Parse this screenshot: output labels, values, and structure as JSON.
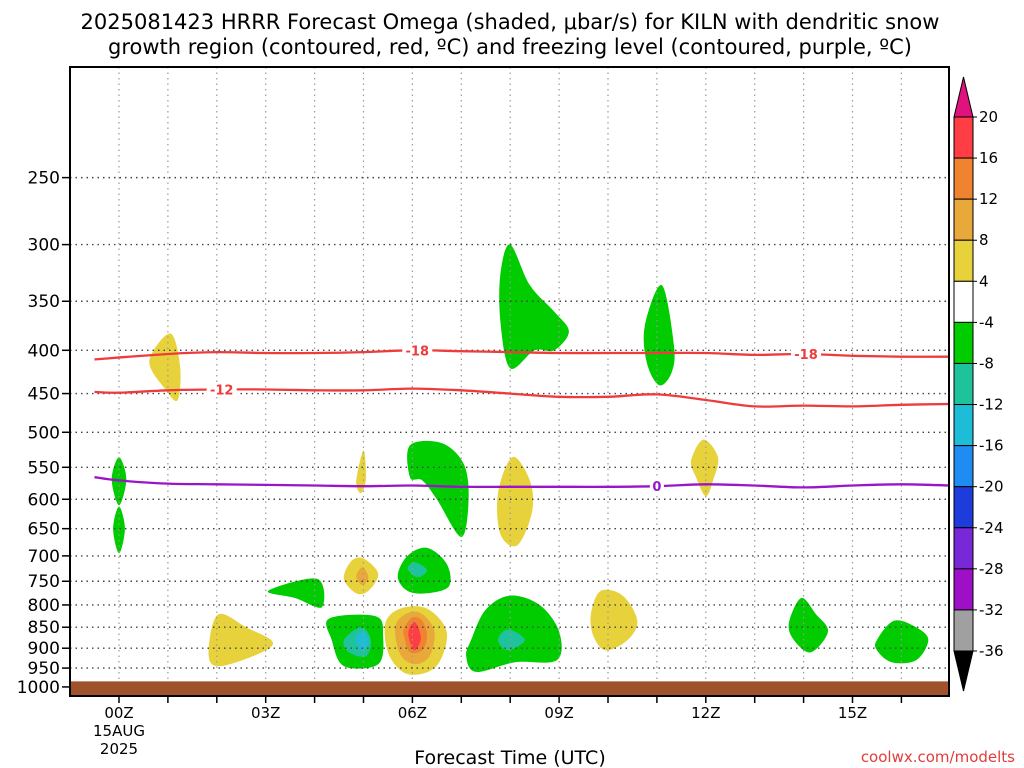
{
  "title": {
    "line1": "2025081423 HRRR Forecast Omega (shaded, μbar/s) for KILN with dendritic snow",
    "line2": "growth region (contoured, red, ºC) and freezing level (contoured, purple, ºC)"
  },
  "xlabel": "Forecast Time (UTC)",
  "credit": "coolwx.com/modelts",
  "chart_data": {
    "type": "heatmap",
    "x": {
      "range": [
        -0.5,
        17.0
      ],
      "ticks": [
        0,
        3,
        6,
        9,
        12,
        15
      ],
      "tick_labels": [
        "00Z",
        "03Z",
        "06Z",
        "09Z",
        "12Z",
        "15Z"
      ],
      "first_tick_extra": [
        "15AUG",
        "2025"
      ],
      "grid_hours": [
        0,
        1,
        2,
        3,
        4,
        5,
        6,
        7,
        8,
        9,
        10,
        11,
        12,
        13,
        14,
        15,
        16
      ]
    },
    "y": {
      "range": [
        1025,
        185
      ],
      "scale": "log-pressure",
      "ticks": [
        250,
        300,
        350,
        400,
        450,
        500,
        550,
        600,
        650,
        700,
        750,
        800,
        850,
        900,
        950,
        1000
      ],
      "grid": true
    },
    "ground": {
      "top_pressure": 985,
      "color": "#a0522d"
    },
    "colorbar": {
      "labels": [
        "20",
        "16",
        "12",
        "8",
        "4",
        "-4",
        "-8",
        "-12",
        "-16",
        "-20",
        "-24",
        "-28",
        "-32",
        "-36"
      ],
      "colors": [
        "#ff3d44",
        "#f08330",
        "#e8a83a",
        "#e8d23c",
        "#ffffff",
        "#00cc00",
        "#1ec39b",
        "#1ebdd7",
        "#1e8cf0",
        "#1e3cdc",
        "#7828d7",
        "#9e0fc8",
        "#a0a0a0"
      ],
      "top_arrow_color": "#e0127e",
      "bottom_arrow_color": "#000000"
    },
    "omega_regions": [
      {
        "label": "4",
        "color": "#e8d23c",
        "points": [
          [
            0.62,
            412
          ],
          [
            1.05,
            382
          ],
          [
            1.25,
            418
          ],
          [
            1.2,
            458
          ],
          [
            0.95,
            445
          ]
        ]
      },
      {
        "label": "-4",
        "color": "#00cc00",
        "points": [
          [
            0.0,
            535
          ],
          [
            0.15,
            568
          ],
          [
            0.0,
            610
          ],
          [
            -0.15,
            568
          ]
        ]
      },
      {
        "label": "-4",
        "color": "#00cc00",
        "points": [
          [
            0.0,
            612
          ],
          [
            0.12,
            650
          ],
          [
            0.0,
            695
          ],
          [
            -0.12,
            650
          ]
        ]
      },
      {
        "label": "4",
        "color": "#e8d23c",
        "points": [
          [
            1.85,
            880
          ],
          [
            2.05,
            820
          ],
          [
            2.6,
            850
          ],
          [
            3.15,
            890
          ],
          [
            2.4,
            935
          ],
          [
            1.9,
            940
          ]
        ]
      },
      {
        "label": "-4",
        "color": "#00cc00",
        "points": [
          [
            3.05,
            770
          ],
          [
            4.05,
            745
          ],
          [
            4.15,
            805
          ],
          [
            3.6,
            785
          ]
        ]
      },
      {
        "label": "-4",
        "color": "#00cc00",
        "points": [
          [
            4.3,
            830
          ],
          [
            5.25,
            825
          ],
          [
            5.4,
            870
          ],
          [
            5.3,
            940
          ],
          [
            4.6,
            945
          ],
          [
            4.35,
            880
          ]
        ]
      },
      {
        "label": "-8",
        "color": "#1ec39b",
        "points": [
          [
            4.6,
            880
          ],
          [
            4.95,
            850
          ],
          [
            5.15,
            880
          ],
          [
            5.05,
            920
          ],
          [
            4.7,
            910
          ]
        ]
      },
      {
        "label": "-12",
        "color": "#1ebdd7",
        "points": [
          [
            4.85,
            875
          ],
          [
            5.0,
            860
          ],
          [
            5.1,
            885
          ],
          [
            4.95,
            905
          ]
        ]
      },
      {
        "label": "4",
        "color": "#e8d23c",
        "points": [
          [
            4.85,
            572
          ],
          [
            5.0,
            525
          ],
          [
            5.05,
            568
          ],
          [
            4.95,
            590
          ]
        ]
      },
      {
        "label": "4",
        "color": "#e8d23c",
        "points": [
          [
            4.6,
            745
          ],
          [
            4.75,
            710
          ],
          [
            5.0,
            705
          ],
          [
            5.3,
            735
          ],
          [
            5.1,
            770
          ],
          [
            4.85,
            775
          ]
        ]
      },
      {
        "label": "8",
        "color": "#e8a83a",
        "points": [
          [
            4.85,
            740
          ],
          [
            4.98,
            722
          ],
          [
            5.1,
            742
          ],
          [
            4.98,
            758
          ]
        ]
      },
      {
        "label": "4",
        "color": "#e8d23c",
        "points": [
          [
            5.45,
            840
          ],
          [
            5.75,
            808
          ],
          [
            6.3,
            808
          ],
          [
            6.7,
            860
          ],
          [
            6.55,
            935
          ],
          [
            6.2,
            965
          ],
          [
            5.8,
            960
          ],
          [
            5.5,
            910
          ]
        ]
      },
      {
        "label": "8",
        "color": "#e8a83a",
        "points": [
          [
            5.65,
            848
          ],
          [
            5.9,
            818
          ],
          [
            6.2,
            820
          ],
          [
            6.45,
            860
          ],
          [
            6.35,
            920
          ],
          [
            6.05,
            940
          ],
          [
            5.75,
            915
          ]
        ]
      },
      {
        "label": "12",
        "color": "#f08330",
        "points": [
          [
            5.82,
            855
          ],
          [
            6.0,
            828
          ],
          [
            6.2,
            835
          ],
          [
            6.3,
            870
          ],
          [
            6.2,
            905
          ],
          [
            5.95,
            910
          ],
          [
            5.85,
            880
          ]
        ]
      },
      {
        "label": "16",
        "color": "#ff3d44",
        "points": [
          [
            5.92,
            860
          ],
          [
            6.02,
            838
          ],
          [
            6.12,
            850
          ],
          [
            6.17,
            880
          ],
          [
            6.05,
            905
          ],
          [
            5.95,
            885
          ]
        ]
      },
      {
        "label": "-4",
        "color": "#00cc00",
        "points": [
          [
            5.7,
            740
          ],
          [
            5.9,
            700
          ],
          [
            6.3,
            685
          ],
          [
            6.7,
            715
          ],
          [
            6.75,
            760
          ],
          [
            6.3,
            775
          ],
          [
            5.9,
            770
          ]
        ]
      },
      {
        "label": "-8",
        "color": "#1ec39b",
        "points": [
          [
            5.9,
            725
          ],
          [
            6.05,
            712
          ],
          [
            6.3,
            728
          ],
          [
            6.1,
            742
          ]
        ]
      },
      {
        "label": "-4",
        "color": "#00cc00",
        "points": [
          [
            5.95,
            518
          ],
          [
            6.6,
            515
          ],
          [
            7.05,
            545
          ],
          [
            7.15,
            600
          ],
          [
            7.0,
            665
          ],
          [
            6.5,
            600
          ],
          [
            6.2,
            570
          ],
          [
            5.95,
            565
          ]
        ]
      },
      {
        "label": "-4",
        "color": "#00cc00",
        "points": [
          [
            7.8,
            325
          ],
          [
            8.0,
            300
          ],
          [
            8.4,
            335
          ],
          [
            8.9,
            360
          ],
          [
            9.2,
            380
          ],
          [
            8.9,
            400
          ],
          [
            8.5,
            400
          ],
          [
            8.0,
            420
          ],
          [
            7.8,
            370
          ]
        ]
      },
      {
        "label": "4",
        "color": "#e8d23c",
        "points": [
          [
            7.75,
            590
          ],
          [
            8.05,
            535
          ],
          [
            8.4,
            570
          ],
          [
            8.45,
            620
          ],
          [
            8.15,
            680
          ],
          [
            7.8,
            660
          ]
        ]
      },
      {
        "label": "-4",
        "color": "#00cc00",
        "points": [
          [
            7.2,
            880
          ],
          [
            7.5,
            810
          ],
          [
            8.0,
            780
          ],
          [
            8.6,
            800
          ],
          [
            9.0,
            860
          ],
          [
            8.95,
            930
          ],
          [
            8.1,
            935
          ],
          [
            7.3,
            960
          ],
          [
            7.1,
            920
          ]
        ]
      },
      {
        "label": "-8",
        "color": "#1ec39b",
        "points": [
          [
            7.75,
            880
          ],
          [
            7.95,
            855
          ],
          [
            8.3,
            880
          ],
          [
            7.95,
            905
          ]
        ]
      },
      {
        "label": "4",
        "color": "#e8d23c",
        "points": [
          [
            9.65,
            820
          ],
          [
            9.85,
            770
          ],
          [
            10.3,
            780
          ],
          [
            10.6,
            835
          ],
          [
            10.4,
            880
          ],
          [
            9.95,
            905
          ],
          [
            9.7,
            870
          ]
        ]
      },
      {
        "label": "-4",
        "color": "#00cc00",
        "points": [
          [
            10.75,
            375
          ],
          [
            11.1,
            335
          ],
          [
            11.35,
            395
          ],
          [
            11.3,
            425
          ],
          [
            11.05,
            440
          ],
          [
            10.8,
            415
          ]
        ]
      },
      {
        "label": "4",
        "color": "#e8d23c",
        "points": [
          [
            11.7,
            540
          ],
          [
            11.95,
            510
          ],
          [
            12.25,
            535
          ],
          [
            12.15,
            570
          ],
          [
            12.0,
            595
          ],
          [
            11.8,
            565
          ]
        ]
      },
      {
        "label": "-4",
        "color": "#00cc00",
        "points": [
          [
            13.7,
            840
          ],
          [
            13.95,
            785
          ],
          [
            14.25,
            820
          ],
          [
            14.5,
            860
          ],
          [
            14.15,
            910
          ],
          [
            13.8,
            880
          ]
        ]
      },
      {
        "label": "-4",
        "color": "#00cc00",
        "points": [
          [
            15.5,
            880
          ],
          [
            15.85,
            835
          ],
          [
            16.3,
            850
          ],
          [
            16.55,
            880
          ],
          [
            16.3,
            930
          ],
          [
            15.8,
            935
          ],
          [
            15.5,
            905
          ]
        ]
      }
    ],
    "contours": [
      {
        "name": "-18",
        "color": "#ee3b3b",
        "points": [
          [
            -0.5,
            410
          ],
          [
            1,
            404
          ],
          [
            2,
            402
          ],
          [
            3,
            403
          ],
          [
            4,
            403
          ],
          [
            5,
            402
          ],
          [
            6,
            400
          ],
          [
            7,
            401
          ],
          [
            8,
            402
          ],
          [
            9,
            403
          ],
          [
            10,
            403
          ],
          [
            11,
            403
          ],
          [
            12,
            403
          ],
          [
            13,
            405
          ],
          [
            14,
            404
          ],
          [
            15,
            406
          ],
          [
            16,
            407
          ],
          [
            17,
            407
          ]
        ],
        "labels": [
          {
            "x": 6.1,
            "text": "-18"
          },
          {
            "x": 14.05,
            "text": "-18"
          }
        ]
      },
      {
        "name": "-12",
        "color": "#ee3b3b",
        "points": [
          [
            -0.5,
            448
          ],
          [
            0,
            449
          ],
          [
            1,
            446
          ],
          [
            2,
            445
          ],
          [
            3,
            445
          ],
          [
            4,
            446
          ],
          [
            5,
            446
          ],
          [
            6,
            444
          ],
          [
            7,
            446
          ],
          [
            8,
            450
          ],
          [
            9,
            454
          ],
          [
            10,
            454
          ],
          [
            11,
            451
          ],
          [
            12,
            458
          ],
          [
            13,
            466
          ],
          [
            14,
            465
          ],
          [
            15,
            466
          ],
          [
            16,
            464
          ],
          [
            17,
            463
          ]
        ],
        "labels": [
          {
            "x": 2.1,
            "text": "-12"
          }
        ]
      },
      {
        "name": "0",
        "color": "#9b14c8",
        "points": [
          [
            -0.5,
            565
          ],
          [
            0,
            570
          ],
          [
            1,
            575
          ],
          [
            2,
            576
          ],
          [
            3,
            577
          ],
          [
            4,
            578
          ],
          [
            5,
            579
          ],
          [
            6,
            578
          ],
          [
            7,
            580
          ],
          [
            8,
            580
          ],
          [
            9,
            580
          ],
          [
            10,
            580
          ],
          [
            11,
            579
          ],
          [
            12,
            576
          ],
          [
            13,
            578
          ],
          [
            14,
            581
          ],
          [
            15,
            578
          ],
          [
            16,
            576
          ],
          [
            17,
            578
          ]
        ],
        "labels": [
          {
            "x": 11.0,
            "text": "0"
          }
        ]
      }
    ]
  }
}
